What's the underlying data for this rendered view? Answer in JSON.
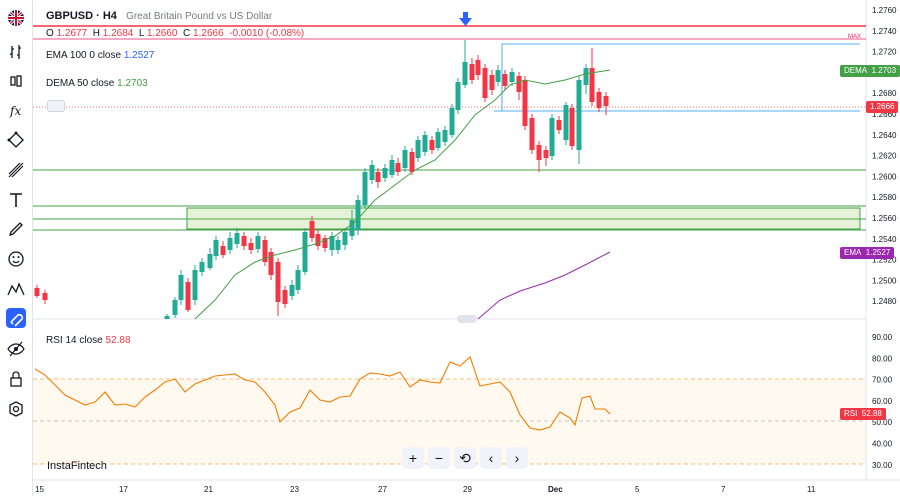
{
  "toolbar": {
    "tools": [
      "flag-icon",
      "chart-type-icon",
      "indicators-icon",
      "function-icon",
      "path-icon",
      "trend-lines-icon",
      "text-icon",
      "brush-icon",
      "emoji-icon",
      "patterns-icon",
      "magnet-icon",
      "visibility-icon",
      "lock-icon",
      "settings-icon"
    ]
  },
  "legend": {
    "title": "GBPUSD · H4",
    "subtitle": "Great Britain Pound vs US Dollar",
    "o_label": "O",
    "o_value": "1.2677",
    "h_label": "H",
    "h_value": "1.2684",
    "l_label": "L",
    "l_value": "1.2660",
    "c_label": "C",
    "c_value": "1.2666",
    "change": "-0.0010 (-0.08%)",
    "ema_label": "EMA 100 0 close",
    "ema_value": "1.2527",
    "dema_label": "DEMA 50 close",
    "dema_value": "1.2703",
    "rsi_label": "RSI 14 close",
    "rsi_value": "52.88"
  },
  "price_axis": [
    "1.2760",
    "1.2740",
    "1.2720",
    "1.2700",
    "1.2680",
    "1.2660",
    "1.2640",
    "1.2620",
    "1.2600",
    "1.2580",
    "1.2560",
    "1.2540",
    "1.2520",
    "1.2500",
    "1.2480"
  ],
  "rsi_axis": [
    "90.00",
    "80.00",
    "70.00",
    "60.00",
    "50.00",
    "40.00",
    "30.00"
  ],
  "max_label": "MAX",
  "tags": {
    "dema_name": "DEMA",
    "dema_value": "1.2703",
    "last_price": "1.2666",
    "ema_name": "EMA",
    "ema_value": "1.2527",
    "rsi_name": "RSI",
    "rsi_value": "52.88"
  },
  "x_axis": [
    "15",
    "17",
    "21",
    "23",
    "27",
    "29",
    "Dec",
    "5",
    "7",
    "11"
  ],
  "brand": "InstaFintech",
  "zoom_buttons": [
    "+",
    "−",
    "⟲",
    "‹",
    "›"
  ],
  "colors": {
    "up": "#22ab94",
    "down": "#f23645",
    "ema": "#9c27b0",
    "dema": "#43a047",
    "rsi": "#f57c00",
    "accent": "#2962ff"
  }
}
